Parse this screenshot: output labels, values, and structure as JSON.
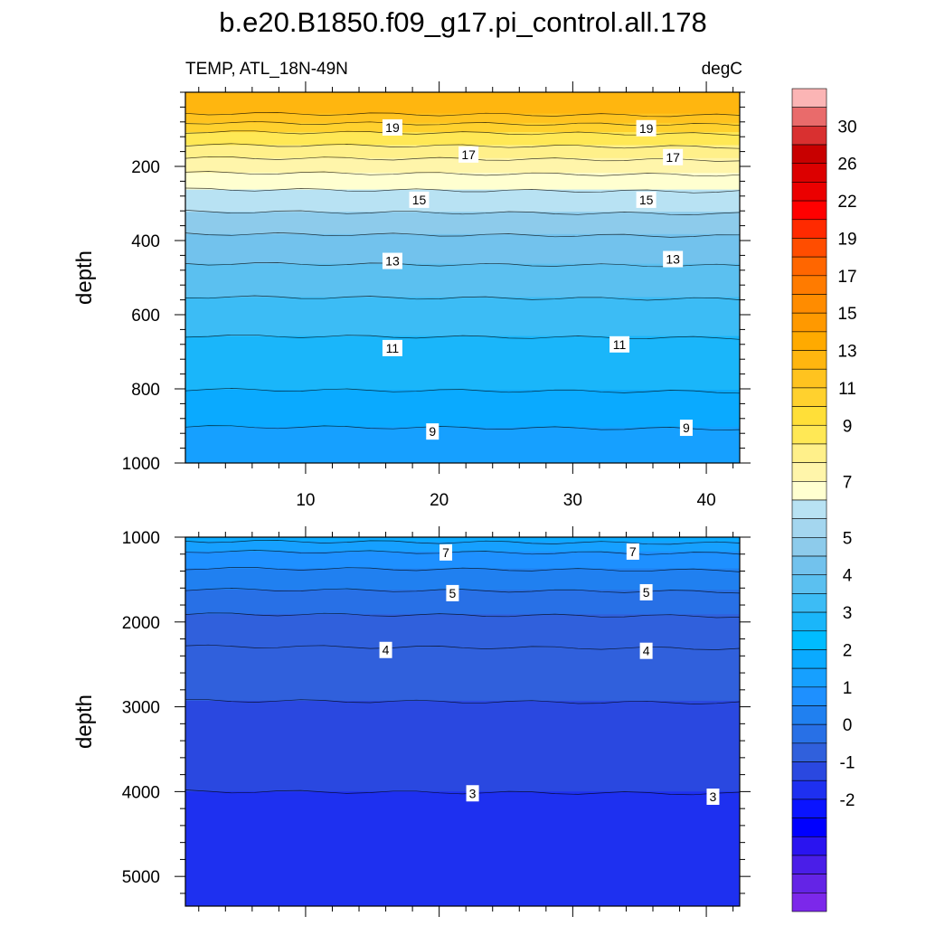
{
  "chart_data": {
    "type": "contour",
    "title": "b.e20.B1850.f09_g17.pi_control.all.178",
    "left_subtitle": "TEMP, ATL_18N-49N",
    "right_subtitle": "degC",
    "ylabel": "depth",
    "x_range": [
      1,
      42.5
    ],
    "x_ticks": [
      10,
      20,
      30,
      40
    ],
    "panels": [
      {
        "name": "upper",
        "y_range": [
          0,
          1000
        ],
        "y_reversed": true,
        "y_ticks": [
          200,
          400,
          600,
          800,
          1000
        ],
        "x_tick_labels_shown": true,
        "contours": [
          {
            "level": 21,
            "depth": 60
          },
          {
            "level": 20,
            "depth": 85
          },
          {
            "level": 19,
            "depth": 110
          },
          {
            "level": 18,
            "depth": 145
          },
          {
            "level": 17,
            "depth": 180
          },
          {
            "level": 16,
            "depth": 220
          },
          {
            "level": 15,
            "depth": 265
          },
          {
            "level": 14,
            "depth": 325
          },
          {
            "level": 13,
            "depth": 385
          },
          {
            "level": 12,
            "depth": 465
          },
          {
            "level": 11,
            "depth": 555
          },
          {
            "level": 10,
            "depth": 660
          },
          {
            "level": 9,
            "depth": 805
          },
          {
            "level": 8,
            "depth": 905
          }
        ],
        "contour_labels": [
          {
            "text": "19",
            "x": 16.5,
            "depth": 95
          },
          {
            "text": "19",
            "x": 35.5,
            "depth": 97
          },
          {
            "text": "17",
            "x": 22.2,
            "depth": 168
          },
          {
            "text": "17",
            "x": 37.5,
            "depth": 175
          },
          {
            "text": "15",
            "x": 18.5,
            "depth": 290
          },
          {
            "text": "15",
            "x": 35.5,
            "depth": 290
          },
          {
            "text": "13",
            "x": 16.5,
            "depth": 455
          },
          {
            "text": "13",
            "x": 37.5,
            "depth": 450
          },
          {
            "text": "11",
            "x": 16.5,
            "depth": 690
          },
          {
            "text": "11",
            "x": 33.5,
            "depth": 680
          },
          {
            "text": "9",
            "x": 19.5,
            "depth": 915
          },
          {
            "text": "9",
            "x": 38.5,
            "depth": 905
          }
        ]
      },
      {
        "name": "lower",
        "y_range": [
          1000,
          5350
        ],
        "y_reversed": true,
        "y_ticks": [
          1000,
          2000,
          3000,
          4000,
          5000
        ],
        "x_tick_labels_shown": false,
        "contours": [
          {
            "level": 8,
            "depth": 1060
          },
          {
            "level": 7,
            "depth": 1180
          },
          {
            "level": 6,
            "depth": 1380
          },
          {
            "level": 5,
            "depth": 1630
          },
          {
            "level": 4.5,
            "depth": 1920
          },
          {
            "level": 4,
            "depth": 2300
          },
          {
            "level": 3.5,
            "depth": 2940
          },
          {
            "level": 3,
            "depth": 4010
          }
        ],
        "contour_labels": [
          {
            "text": "7",
            "x": 20.5,
            "depth": 1180
          },
          {
            "text": "7",
            "x": 34.5,
            "depth": 1170
          },
          {
            "text": "5",
            "x": 21.0,
            "depth": 1660
          },
          {
            "text": "5",
            "x": 35.5,
            "depth": 1650
          },
          {
            "text": "4",
            "x": 16.0,
            "depth": 2330
          },
          {
            "text": "4",
            "x": 35.5,
            "depth": 2340
          },
          {
            "text": "3",
            "x": 22.5,
            "depth": 4020
          },
          {
            "text": "3",
            "x": 40.5,
            "depth": 4060
          }
        ]
      }
    ],
    "colorbar": {
      "labels": [
        "30",
        "26",
        "22",
        "19",
        "17",
        "15",
        "13",
        "11",
        "9",
        "7",
        "5",
        "4",
        "3",
        "2",
        "1",
        "0",
        "-1",
        "-2"
      ],
      "boxes": [
        "#fbb5b5",
        "#e96b6b",
        "#d93030",
        "#c80000",
        "#dc0000",
        "#eb0000",
        "#ff0000",
        "#ff2a00",
        "#ff4d00",
        "#ff6600",
        "#ff7b00",
        "#ff8c00",
        "#ff9900",
        "#ffaa00",
        "#ffb60f",
        "#ffc31f",
        "#ffd12e",
        "#ffdf38",
        "#ffe855",
        "#fff08a",
        "#fff5aa",
        "#ffffd0",
        "#b8e2f3",
        "#a4d6ef",
        "#8dcbeb",
        "#72c2ed",
        "#5bc0f0",
        "#3cbcf5",
        "#1ab6fa",
        "#00bcff",
        "#0aaaff",
        "#16a0ff",
        "#1e90ff",
        "#2080f0",
        "#2870e6",
        "#3060dc",
        "#2a48e0",
        "#1e30f0",
        "#0a14ff",
        "#0000ff",
        "#2a14f0",
        "#4a1ee8",
        "#6424e6",
        "#7c28ea"
      ]
    },
    "colors": {
      "axis": "#000000",
      "contour_line": "#000000"
    }
  }
}
